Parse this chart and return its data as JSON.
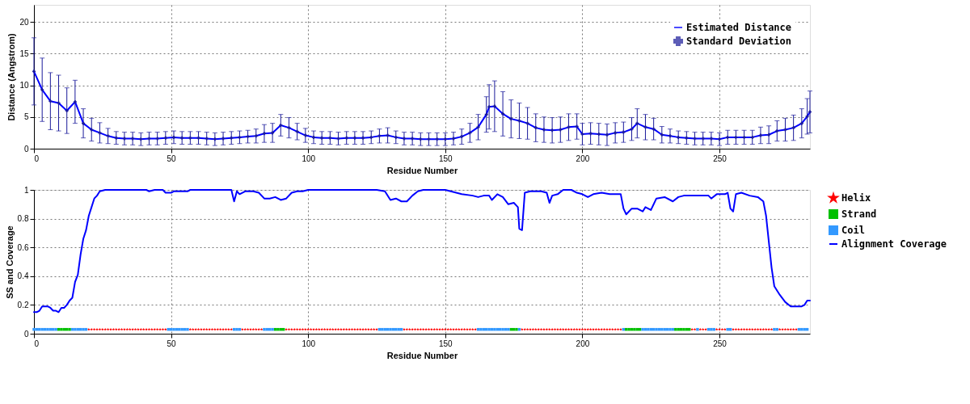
{
  "chart_data": [
    {
      "type": "line",
      "xlabel": "Residue Number",
      "ylabel": "Distance (Angstrom)",
      "xlim": [
        0,
        283
      ],
      "xticks": [
        0,
        50,
        100,
        150,
        200,
        250
      ],
      "ylim": [
        0,
        22.7
      ],
      "yticks": [
        0,
        5,
        10,
        15,
        20
      ],
      "grid": true,
      "legend": "top right",
      "x": [
        0,
        3,
        6,
        9,
        12,
        15,
        18,
        21,
        24,
        27,
        30,
        33,
        36,
        39,
        42,
        45,
        48,
        51,
        54,
        57,
        60,
        63,
        66,
        69,
        72,
        75,
        78,
        81,
        84,
        87,
        90,
        93,
        96,
        99,
        102,
        105,
        108,
        111,
        114,
        117,
        120,
        123,
        126,
        129,
        132,
        135,
        138,
        141,
        144,
        147,
        150,
        153,
        156,
        159,
        162,
        165,
        166,
        168,
        171,
        174,
        177,
        180,
        183,
        186,
        189,
        192,
        195,
        198,
        200,
        203,
        206,
        209,
        212,
        215,
        218,
        220,
        223,
        226,
        229,
        232,
        235,
        238,
        241,
        244,
        247,
        250,
        253,
        256,
        259,
        262,
        265,
        268,
        271,
        274,
        277,
        280,
        282,
        283
      ],
      "series": [
        {
          "name": "Estimated Distance",
          "color": "#0000ff",
          "values": [
            12.2,
            9.3,
            7.5,
            7.2,
            6.0,
            7.4,
            4.0,
            3.0,
            2.5,
            2.0,
            1.7,
            1.6,
            1.6,
            1.5,
            1.6,
            1.6,
            1.7,
            1.8,
            1.7,
            1.7,
            1.7,
            1.6,
            1.5,
            1.6,
            1.7,
            1.8,
            1.9,
            2.0,
            2.4,
            2.5,
            3.7,
            3.3,
            2.7,
            2.1,
            1.8,
            1.7,
            1.7,
            1.6,
            1.7,
            1.7,
            1.7,
            1.8,
            2.0,
            2.1,
            1.8,
            1.6,
            1.6,
            1.5,
            1.5,
            1.5,
            1.5,
            1.6,
            1.9,
            2.5,
            3.4,
            5.4,
            6.6,
            6.7,
            5.5,
            4.7,
            4.4,
            4.0,
            3.3,
            3.0,
            2.9,
            3.0,
            3.4,
            3.5,
            2.3,
            2.4,
            2.3,
            2.2,
            2.5,
            2.6,
            3.1,
            4.0,
            3.4,
            3.1,
            2.2,
            2.0,
            1.8,
            1.7,
            1.6,
            1.6,
            1.6,
            1.5,
            1.8,
            1.8,
            1.8,
            1.8,
            2.1,
            2.2,
            2.8,
            3.0,
            3.3,
            4.0,
            5.1,
            5.8
          ]
        },
        {
          "name": "Standard Deviation",
          "type": "scatter",
          "marker": "cross",
          "color": "#1a1a9a",
          "values": [
            12.2,
            9.3,
            7.5,
            7.2,
            6.0,
            7.4,
            4.0,
            3.0,
            2.5,
            2.0,
            1.7,
            1.6,
            1.6,
            1.5,
            1.6,
            1.6,
            1.7,
            1.8,
            1.7,
            1.7,
            1.7,
            1.6,
            1.5,
            1.6,
            1.7,
            1.8,
            1.9,
            2.0,
            2.4,
            2.5,
            3.7,
            3.3,
            2.7,
            2.1,
            1.8,
            1.7,
            1.7,
            1.6,
            1.7,
            1.7,
            1.7,
            1.8,
            2.0,
            2.1,
            1.8,
            1.6,
            1.6,
            1.5,
            1.5,
            1.5,
            1.5,
            1.6,
            1.9,
            2.5,
            3.4,
            5.4,
            6.6,
            6.7,
            5.5,
            4.7,
            4.4,
            4.0,
            3.3,
            3.0,
            2.9,
            3.0,
            3.4,
            3.5,
            2.3,
            2.4,
            2.3,
            2.2,
            2.5,
            2.6,
            3.1,
            4.0,
            3.4,
            3.1,
            2.2,
            2.0,
            1.8,
            1.7,
            1.6,
            1.6,
            1.6,
            1.5,
            1.8,
            1.8,
            1.8,
            1.8,
            2.1,
            2.2,
            2.8,
            3.0,
            3.3,
            4.0,
            5.1,
            5.8
          ],
          "errors": [
            5.3,
            5.0,
            4.5,
            4.4,
            3.6,
            3.4,
            2.3,
            1.8,
            1.6,
            1.2,
            1.0,
            1.0,
            1.0,
            1.0,
            1.0,
            1.0,
            1.0,
            1.0,
            1.0,
            1.0,
            1.0,
            1.0,
            1.0,
            1.0,
            1.0,
            1.0,
            1.0,
            1.1,
            1.4,
            1.5,
            1.7,
            1.6,
            1.3,
            1.1,
            1.0,
            1.0,
            1.0,
            1.0,
            1.0,
            1.0,
            1.0,
            1.0,
            1.1,
            1.2,
            1.0,
            1.0,
            1.0,
            1.0,
            1.0,
            1.0,
            1.0,
            1.0,
            1.2,
            1.5,
            2.0,
            2.8,
            3.5,
            4.0,
            3.5,
            3.0,
            2.8,
            2.5,
            2.2,
            2.0,
            2.0,
            2.0,
            2.1,
            2.0,
            1.7,
            1.7,
            1.7,
            1.7,
            1.6,
            1.6,
            1.8,
            2.3,
            2.0,
            1.7,
            1.3,
            1.1,
            1.0,
            1.0,
            1.0,
            1.0,
            1.0,
            1.0,
            1.1,
            1.1,
            1.1,
            1.1,
            1.3,
            1.4,
            1.6,
            1.8,
            2.0,
            2.3,
            2.8,
            3.3
          ]
        }
      ]
    },
    {
      "type": "scatter",
      "xlabel": "Residue Number",
      "ylabel": "SS and Coverage",
      "xlim": [
        0,
        283
      ],
      "xticks": [
        0,
        50,
        100,
        150,
        200,
        250
      ],
      "ylim": [
        0,
        1
      ],
      "yticks": [
        0,
        0.2,
        0.4,
        0.6,
        0.8,
        1
      ],
      "grid": true,
      "legend": "right",
      "series": [
        {
          "name": "Helix",
          "color": "#ff0000",
          "marker": "star",
          "x": [
            20,
            21,
            22,
            23,
            24,
            25,
            26,
            27,
            28,
            29,
            30,
            31,
            32,
            33,
            34,
            35,
            36,
            37,
            38,
            39,
            40,
            41,
            42,
            43,
            44,
            45,
            46,
            47,
            48,
            57,
            58,
            59,
            60,
            61,
            62,
            63,
            64,
            65,
            66,
            67,
            68,
            69,
            70,
            71,
            72,
            76,
            77,
            78,
            79,
            80,
            81,
            82,
            83,
            92,
            93,
            94,
            95,
            96,
            97,
            98,
            99,
            100,
            101,
            102,
            103,
            104,
            105,
            106,
            107,
            108,
            109,
            110,
            111,
            112,
            113,
            114,
            115,
            116,
            117,
            118,
            119,
            120,
            121,
            122,
            123,
            124,
            125,
            135,
            136,
            137,
            138,
            139,
            140,
            141,
            142,
            143,
            144,
            145,
            146,
            147,
            148,
            149,
            150,
            151,
            152,
            153,
            154,
            155,
            156,
            157,
            158,
            159,
            160,
            161,
            178,
            179,
            180,
            181,
            182,
            183,
            184,
            185,
            186,
            187,
            188,
            189,
            190,
            191,
            192,
            193,
            194,
            195,
            196,
            197,
            198,
            199,
            200,
            201,
            202,
            203,
            204,
            205,
            206,
            207,
            208,
            209,
            210,
            211,
            212,
            213,
            214,
            240,
            241,
            243,
            244,
            245,
            249,
            250,
            251,
            252,
            255,
            256,
            257,
            258,
            259,
            260,
            261,
            262,
            263,
            264,
            265,
            266,
            267,
            268,
            269,
            272,
            273,
            274,
            275,
            276,
            277,
            278
          ],
          "values": [
            0.03,
            0.03,
            0.03,
            0.03,
            0.03,
            0.03,
            0.03,
            0.03,
            0.03,
            0.03,
            0.03,
            0.03,
            0.03,
            0.03,
            0.03,
            0.03,
            0.03,
            0.03,
            0.03,
            0.03,
            0.03,
            0.03,
            0.03,
            0.03,
            0.03,
            0.03,
            0.03,
            0.03,
            0.03,
            0.03,
            0.03,
            0.03,
            0.03,
            0.03,
            0.03,
            0.03,
            0.03,
            0.03,
            0.03,
            0.03,
            0.03,
            0.03,
            0.03,
            0.03,
            0.03,
            0.03,
            0.03,
            0.03,
            0.03,
            0.03,
            0.03,
            0.03,
            0.03,
            0.03,
            0.03,
            0.03,
            0.03,
            0.03,
            0.03,
            0.03,
            0.03,
            0.03,
            0.03,
            0.03,
            0.03,
            0.03,
            0.03,
            0.03,
            0.03,
            0.03,
            0.03,
            0.03,
            0.03,
            0.03,
            0.03,
            0.03,
            0.03,
            0.03,
            0.03,
            0.03,
            0.03,
            0.03,
            0.03,
            0.03,
            0.03,
            0.03,
            0.03,
            0.03,
            0.03,
            0.03,
            0.03,
            0.03,
            0.03,
            0.03,
            0.03,
            0.03,
            0.03,
            0.03,
            0.03,
            0.03,
            0.03,
            0.03,
            0.03,
            0.03,
            0.03,
            0.03,
            0.03,
            0.03,
            0.03,
            0.03,
            0.03,
            0.03,
            0.03,
            0.03,
            0.03,
            0.03,
            0.03,
            0.03,
            0.03,
            0.03,
            0.03,
            0.03,
            0.03,
            0.03,
            0.03,
            0.03,
            0.03,
            0.03,
            0.03,
            0.03,
            0.03,
            0.03,
            0.03,
            0.03,
            0.03,
            0.03,
            0.03,
            0.03,
            0.03,
            0.03,
            0.03,
            0.03,
            0.03,
            0.03,
            0.03,
            0.03,
            0.03,
            0.03,
            0.03,
            0.03,
            0.03,
            0.03,
            0.03,
            0.03,
            0.03,
            0.03,
            0.03,
            0.03,
            0.03,
            0.03,
            0.03,
            0.03,
            0.03,
            0.03,
            0.03,
            0.03,
            0.03,
            0.03,
            0.03,
            0.03,
            0.03,
            0.03,
            0.03,
            0.03,
            0.03,
            0.03,
            0.03,
            0.03,
            0.03,
            0.03,
            0.03,
            0.03
          ]
        },
        {
          "name": "Strand",
          "color": "#00c000",
          "marker": "square",
          "x": [
            9,
            10,
            11,
            12,
            13,
            88,
            89,
            90,
            91,
            174,
            175,
            176,
            216,
            217,
            218,
            219,
            220,
            221,
            234,
            235,
            236,
            237,
            238,
            239
          ],
          "values": [
            0.03,
            0.03,
            0.03,
            0.03,
            0.03,
            0.03,
            0.03,
            0.03,
            0.03,
            0.03,
            0.03,
            0.03,
            0.03,
            0.03,
            0.03,
            0.03,
            0.03,
            0.03,
            0.03,
            0.03,
            0.03,
            0.03,
            0.03,
            0.03
          ]
        },
        {
          "name": "Coil",
          "color": "#3399ff",
          "marker": "square",
          "x": [
            0,
            1,
            2,
            3,
            4,
            5,
            6,
            7,
            8,
            14,
            15,
            16,
            17,
            18,
            19,
            49,
            50,
            51,
            52,
            53,
            54,
            55,
            56,
            73,
            74,
            75,
            84,
            85,
            86,
            87,
            126,
            127,
            128,
            129,
            130,
            131,
            132,
            133,
            134,
            162,
            163,
            164,
            165,
            166,
            167,
            168,
            169,
            170,
            171,
            172,
            173,
            177,
            215,
            222,
            223,
            224,
            225,
            226,
            227,
            228,
            229,
            230,
            231,
            232,
            233,
            242,
            246,
            247,
            248,
            253,
            254,
            270,
            271,
            279,
            280,
            281,
            282
          ],
          "values": [
            0.03,
            0.03,
            0.03,
            0.03,
            0.03,
            0.03,
            0.03,
            0.03,
            0.03,
            0.03,
            0.03,
            0.03,
            0.03,
            0.03,
            0.03,
            0.03,
            0.03,
            0.03,
            0.03,
            0.03,
            0.03,
            0.03,
            0.03,
            0.03,
            0.03,
            0.03,
            0.03,
            0.03,
            0.03,
            0.03,
            0.03,
            0.03,
            0.03,
            0.03,
            0.03,
            0.03,
            0.03,
            0.03,
            0.03,
            0.03,
            0.03,
            0.03,
            0.03,
            0.03,
            0.03,
            0.03,
            0.03,
            0.03,
            0.03,
            0.03,
            0.03,
            0.03,
            0.03,
            0.03,
            0.03,
            0.03,
            0.03,
            0.03,
            0.03,
            0.03,
            0.03,
            0.03,
            0.03,
            0.03,
            0.03,
            0.03,
            0.03,
            0.03,
            0.03,
            0.03,
            0.03,
            0.03,
            0.03,
            0.03,
            0.03,
            0.03,
            0.03
          ]
        },
        {
          "name": "Alignment Coverage",
          "type": "line",
          "color": "#0000ff",
          "x": [
            0,
            1,
            2,
            3,
            5,
            6,
            7,
            8,
            9,
            10,
            11,
            12,
            13,
            14,
            15,
            16,
            17,
            18,
            19,
            20,
            21,
            22,
            23,
            24,
            26,
            41,
            42,
            44,
            47,
            48,
            50,
            51,
            56,
            57,
            72,
            73,
            74,
            75,
            77,
            80,
            82,
            84,
            86,
            88,
            90,
            92,
            94,
            96,
            98,
            100,
            125,
            128,
            130,
            132,
            134,
            136,
            138,
            140,
            142,
            150,
            152,
            156,
            160,
            162,
            164,
            166,
            167,
            169,
            171,
            173,
            175,
            176.5,
            177,
            178,
            179,
            181,
            185,
            187,
            188,
            189,
            191,
            193,
            196,
            198,
            200,
            202,
            204,
            207,
            210,
            214,
            215,
            216,
            218,
            220,
            222,
            223,
            225,
            227,
            230,
            233,
            235,
            237,
            240,
            243,
            246,
            247,
            249,
            252,
            253,
            254,
            255,
            256,
            258,
            261,
            264,
            266,
            267,
            268,
            269,
            270,
            272,
            274,
            276,
            280,
            281,
            282,
            283
          ],
          "values": [
            0.15,
            0.15,
            0.16,
            0.19,
            0.19,
            0.18,
            0.16,
            0.16,
            0.15,
            0.18,
            0.18,
            0.2,
            0.23,
            0.25,
            0.36,
            0.41,
            0.55,
            0.66,
            0.72,
            0.82,
            0.88,
            0.94,
            0.96,
            0.99,
            1.0,
            1.0,
            0.99,
            1.0,
            1.0,
            0.98,
            0.98,
            0.99,
            0.99,
            1.0,
            1.0,
            0.92,
            0.99,
            0.97,
            0.99,
            0.99,
            0.98,
            0.94,
            0.94,
            0.95,
            0.93,
            0.94,
            0.98,
            0.99,
            0.99,
            1.0,
            1.0,
            0.99,
            0.93,
            0.94,
            0.92,
            0.92,
            0.96,
            0.99,
            1.0,
            1.0,
            0.99,
            0.97,
            0.96,
            0.95,
            0.96,
            0.96,
            0.93,
            0.97,
            0.95,
            0.9,
            0.91,
            0.88,
            0.73,
            0.72,
            0.98,
            0.99,
            0.99,
            0.98,
            0.91,
            0.96,
            0.97,
            1.0,
            1.0,
            0.98,
            0.97,
            0.95,
            0.97,
            0.98,
            0.97,
            0.97,
            0.87,
            0.83,
            0.87,
            0.87,
            0.85,
            0.88,
            0.86,
            0.94,
            0.95,
            0.92,
            0.95,
            0.96,
            0.96,
            0.96,
            0.96,
            0.94,
            0.97,
            0.97,
            0.98,
            0.87,
            0.85,
            0.97,
            0.98,
            0.96,
            0.95,
            0.92,
            0.82,
            0.64,
            0.46,
            0.33,
            0.27,
            0.22,
            0.19,
            0.19,
            0.2,
            0.23,
            0.23
          ]
        }
      ]
    }
  ]
}
